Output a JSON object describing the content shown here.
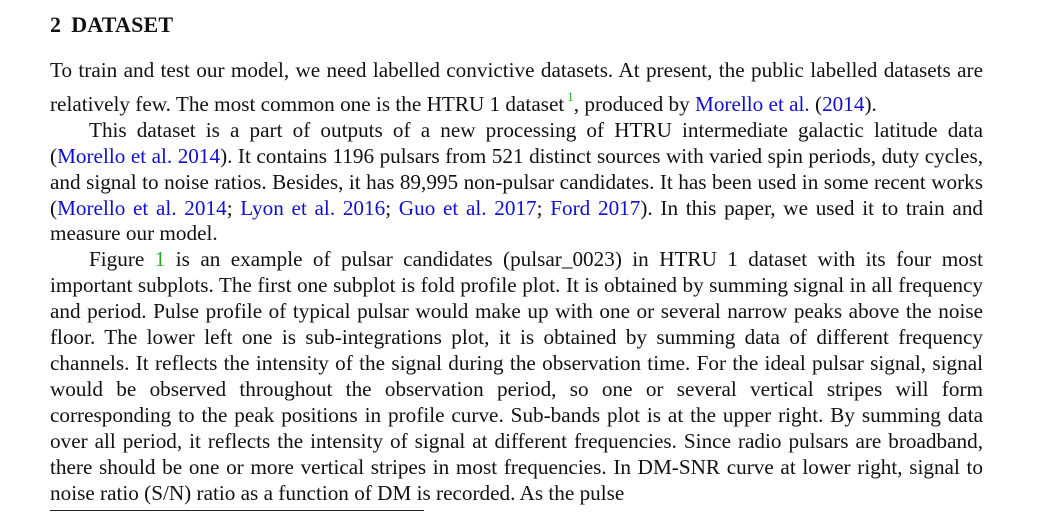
{
  "section": {
    "number": "2",
    "title": "DATASET"
  },
  "paragraphs": [
    {
      "id": "p1",
      "indent": false,
      "parts": [
        {
          "t": "To train and test our model, we need labelled convictive datasets. At present, the public labelled datasets are relatively few. The most common one is the HTRU 1 dataset"
        },
        {
          "t": "1",
          "k": "fn"
        },
        {
          "t": ", produced by "
        },
        {
          "t": "Morello et al.",
          "k": "cite"
        },
        {
          "t": " ("
        },
        {
          "t": "2014",
          "k": "cite"
        },
        {
          "t": ")."
        }
      ]
    },
    {
      "id": "p2",
      "indent": true,
      "parts": [
        {
          "t": "This dataset is a part of outputs of a new processing of HTRU intermediate galactic latitude data ("
        },
        {
          "t": "Morello et al. 2014",
          "k": "cite"
        },
        {
          "t": "). It contains 1196 pulsars from 521 distinct sources with varied spin periods, duty cycles, and signal to noise ratios. Besides, it has 89,995 non-pulsar candidates. It has been used in some recent works ("
        },
        {
          "t": "Morello et al. 2014",
          "k": "cite"
        },
        {
          "t": "; "
        },
        {
          "t": "Lyon et al. 2016",
          "k": "cite"
        },
        {
          "t": "; "
        },
        {
          "t": "Guo et al. 2017",
          "k": "cite"
        },
        {
          "t": "; "
        },
        {
          "t": "Ford 2017",
          "k": "cite"
        },
        {
          "t": "). In this paper, we used it to train and measure our model."
        }
      ]
    },
    {
      "id": "p3",
      "indent": true,
      "parts": [
        {
          "t": "Figure "
        },
        {
          "t": "1",
          "k": "fig"
        },
        {
          "t": " is an example of pulsar candidates (pulsar_0023) in HTRU 1 dataset with its four most important subplots. The first one subplot is fold profile plot. It is obtained by summing signal in all frequency and period. Pulse profile of typical pulsar would make up with one or several narrow peaks above the noise floor. The lower left one is sub-integrations plot, it is obtained by summing data of dif­ferent frequency channels. It reflects the intensity of the signal during the observation time. For the ideal pulsar signal, signal would be observed throughout the observation period, so one or several vertical stripes will form corresponding to the peak positions in profile curve. Sub-bands plot is at the upper right. By summing data over all period, it reflects the intensity of signal at different frequencies. Since radio pulsars are broadband, there should be one or more vertical stripes in most frequencies. In DM-SNR curve at lower right, signal to noise ratio (S/N) ratio as a function of DM is recorded. As the pulse"
        }
      ]
    }
  ],
  "colors": {
    "citation": "#1010cc",
    "footnote_marker": "#22aa22",
    "figure_ref": "#22aa22"
  }
}
